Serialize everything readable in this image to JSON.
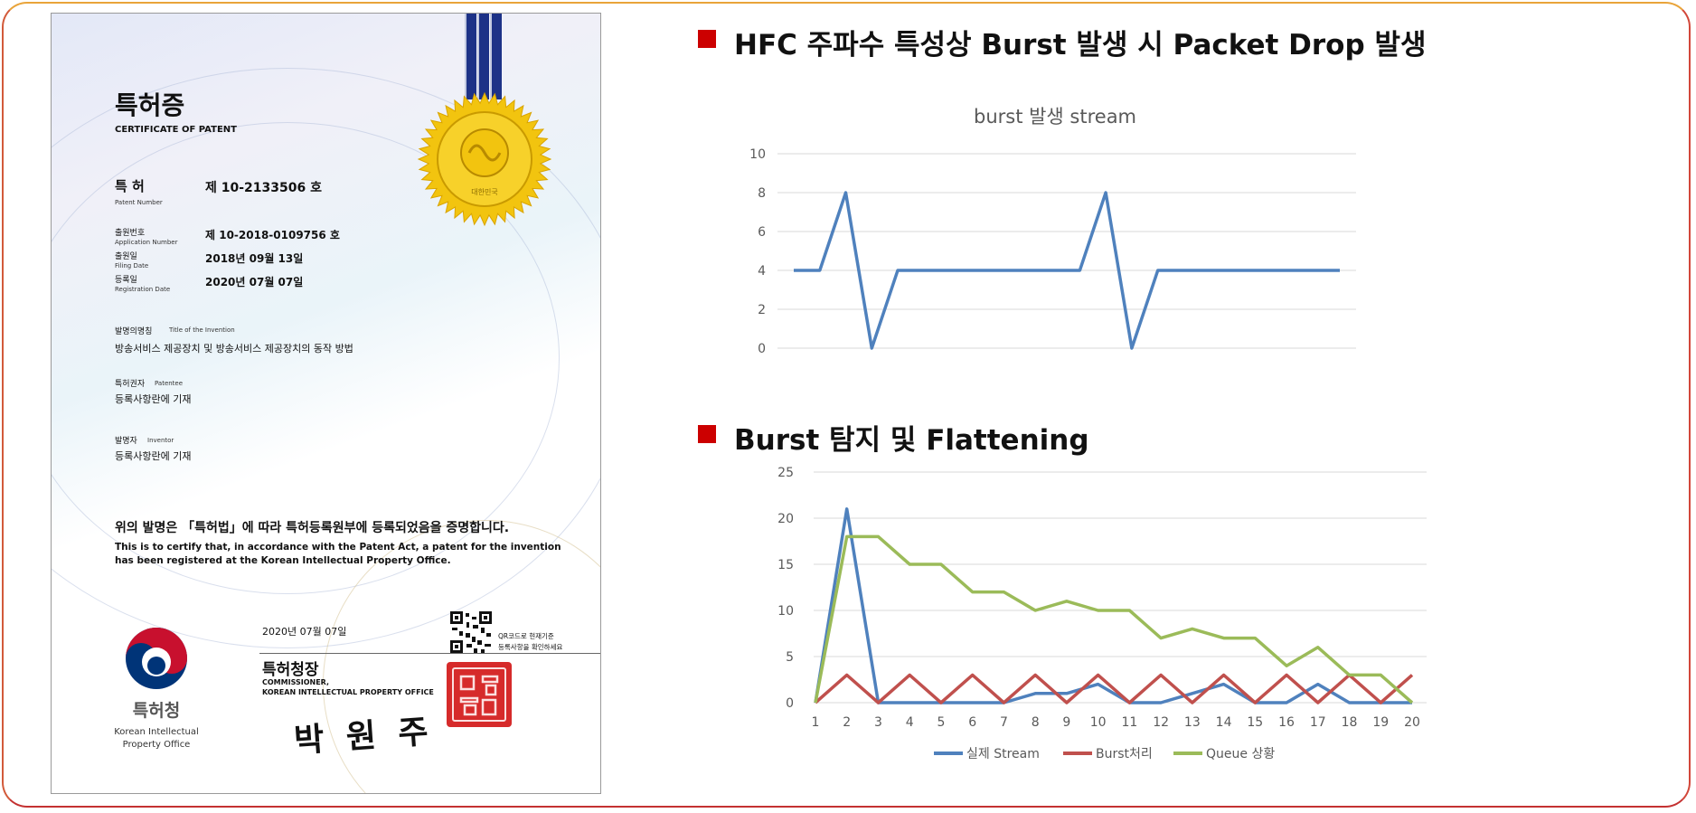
{
  "certificate": {
    "title_ko": "특허증",
    "title_en": "CERTIFICATE OF PATENT",
    "patent_label": "특 허",
    "patent_label_en": "Patent Number",
    "patent_number": "제 10-2133506 호",
    "application_label": "출원번호",
    "application_label_en": "Application Number",
    "application_number": "제 10-2018-0109756 호",
    "filing_label": "출원일",
    "filing_label_en": "Filing Date",
    "filing_date": "2018년 09월 13일",
    "registration_label": "등록일",
    "registration_label_en": "Registration Date",
    "registration_date": "2020년 07월 07일",
    "invention_label": "발명의명칭",
    "invention_label_en": "Title of the Invention",
    "invention_title": "방송서비스 제공장치 및 방송서비스 제공장치의 동작 방법",
    "patentee_label": "특허권자",
    "patentee_label_en": "Patentee",
    "patentee": "등록사항란에 기재",
    "inventor_label": "발명자",
    "inventor_label_en": "Inventor",
    "inventor": "등록사항란에 기재",
    "certify_ko": "위의 발명은 「특허법」에 따라 특허등록원부에 등록되었음을 증명합니다.",
    "certify_en_1": "This is to certify that, in accordance with the Patent Act, a patent for the invention",
    "certify_en_2": "has been registered at the Korean Intellectual Property Office.",
    "issue_date": "2020년 07월 07일",
    "qr_note_1": "QR코드로 현재기준",
    "qr_note_2": "등록사항을 확인하세요",
    "commissioner_ko": "특허청장",
    "commissioner_en_1": "COMMISSIONER,",
    "commissioner_en_2": "KOREAN INTELLECTUAL PROPERTY OFFICE",
    "signature": "박 원 주",
    "office_ko": "특허청",
    "office_en_1": "Korean Intellectual",
    "office_en_2": "Property Office",
    "seal_text": "대한민국",
    "colors": {
      "ribbon": "#1d3287",
      "seal_gold": "#f2c40f",
      "stamp": "#d62b2b",
      "logo_red": "#c8102e",
      "logo_blue": "#003478"
    }
  },
  "section1": {
    "heading": "HFC 주파수 특성상 Burst 발생 시 Packet Drop 발생"
  },
  "section2": {
    "heading": "Burst 탐지 및 Flattening"
  },
  "bullet_color": "#cc0000",
  "chart_data": [
    {
      "type": "line",
      "title": "burst 발생 stream",
      "x": [
        1,
        2,
        3,
        4,
        5,
        6,
        7,
        8,
        9,
        10,
        11,
        12,
        13,
        14,
        15,
        16,
        17,
        18,
        19,
        20,
        21,
        22
      ],
      "series": [
        {
          "color": "#4f81bd",
          "values": [
            4,
            4,
            8,
            0,
            4,
            4,
            4,
            4,
            4,
            4,
            4,
            4,
            8,
            0,
            4,
            4,
            4,
            4,
            4,
            4,
            4,
            4
          ]
        }
      ],
      "ylim": [
        0,
        10
      ],
      "yticks": [
        0,
        2,
        4,
        6,
        8,
        10
      ],
      "grid": true,
      "legend": "none"
    },
    {
      "type": "line",
      "title": "",
      "categories": [
        "1",
        "2",
        "3",
        "4",
        "5",
        "6",
        "7",
        "8",
        "9",
        "10",
        "11",
        "12",
        "13",
        "14",
        "15",
        "16",
        "17",
        "18",
        "19",
        "20"
      ],
      "series": [
        {
          "name": "실제 Stream",
          "color": "#4f81bd",
          "values": [
            0,
            21,
            0,
            0,
            0,
            0,
            0,
            1,
            1,
            2,
            0,
            0,
            1,
            2,
            0,
            0,
            2,
            0,
            0,
            0
          ]
        },
        {
          "name": "Burst처리",
          "color": "#c0504d",
          "values": [
            0,
            3,
            0,
            3,
            0,
            3,
            0,
            3,
            0,
            3,
            0,
            3,
            0,
            3,
            0,
            3,
            0,
            3,
            0,
            3
          ]
        },
        {
          "name": "Queue 상황",
          "color": "#9bbb59",
          "values": [
            0,
            18,
            18,
            15,
            15,
            12,
            12,
            10,
            11,
            10,
            10,
            7,
            8,
            7,
            7,
            4,
            6,
            3,
            3,
            0
          ]
        }
      ],
      "ylim": [
        0,
        25
      ],
      "yticks": [
        0,
        5,
        10,
        15,
        20,
        25
      ],
      "grid": true,
      "legend": "bottom"
    }
  ]
}
